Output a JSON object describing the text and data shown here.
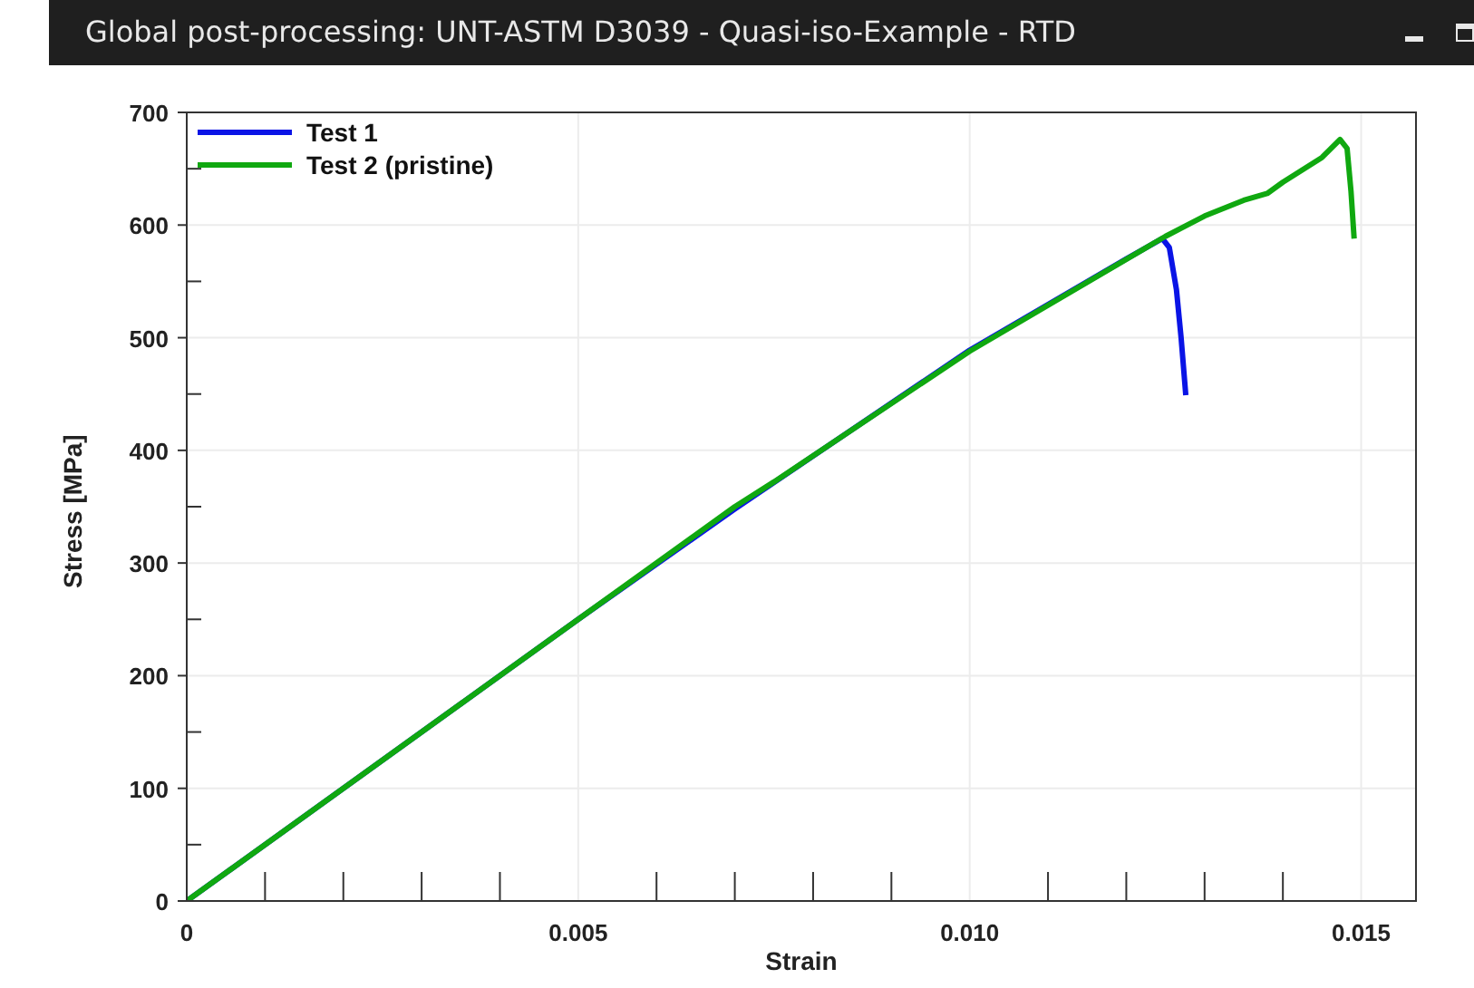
{
  "chart_data": {
    "type": "line",
    "title": "Global post-processing: UNT-ASTM D3039 - Quasi-iso-Example - RTD",
    "xlabel": "Strain",
    "ylabel": "Stress [MPa]",
    "xlim": [
      0,
      0.0157
    ],
    "ylim": [
      0,
      700
    ],
    "xticks": [
      0,
      {
        "value": 0.001,
        "label": null
      },
      {
        "value": 0.002,
        "label": null
      },
      {
        "value": 0.003,
        "label": null
      },
      {
        "value": 0.004,
        "label": null
      },
      {
        "value": 0.005,
        "label": "0.005"
      },
      {
        "value": 0.006,
        "label": null
      },
      {
        "value": 0.007,
        "label": null
      },
      {
        "value": 0.008,
        "label": null
      },
      {
        "value": 0.009,
        "label": null
      },
      {
        "value": 0.01,
        "label": "0.010"
      },
      {
        "value": 0.011,
        "label": null
      },
      {
        "value": 0.012,
        "label": null
      },
      {
        "value": 0.013,
        "label": null
      },
      {
        "value": 0.014,
        "label": null
      },
      {
        "value": 0.015,
        "label": "0.015"
      }
    ],
    "yticks": [
      0,
      {
        "value": 50,
        "label": null
      },
      100,
      {
        "value": 150,
        "label": null
      },
      200,
      {
        "value": 250,
        "label": null
      },
      300,
      {
        "value": 350,
        "label": null
      },
      400,
      {
        "value": 450,
        "label": null
      },
      500,
      {
        "value": 550,
        "label": null
      },
      600,
      {
        "value": 650,
        "label": null
      },
      700
    ],
    "grid": true,
    "legend": "top left",
    "marker": "none",
    "line_style": "solid",
    "series": [
      {
        "name": "Test 1",
        "color": "#0a14e6",
        "x": [
          0,
          0.005,
          0.007,
          0.01,
          0.012,
          0.01246,
          0.01255,
          0.01264,
          0.0127,
          0.01276
        ],
        "values": [
          0,
          250,
          348,
          489,
          570,
          588,
          580,
          543,
          500,
          449
        ]
      },
      {
        "name": "Test 2 (pristine)",
        "color": "#10a810",
        "x": [
          0,
          0.005,
          0.007,
          0.0075,
          0.01,
          0.0125,
          0.013,
          0.0135,
          0.0138,
          0.014,
          0.0145,
          0.01473,
          0.01482,
          0.01487,
          0.01491
        ],
        "values": [
          0,
          250,
          350,
          372,
          488,
          590,
          608,
          622,
          628,
          638,
          660,
          676,
          668,
          630,
          588
        ]
      }
    ]
  }
}
